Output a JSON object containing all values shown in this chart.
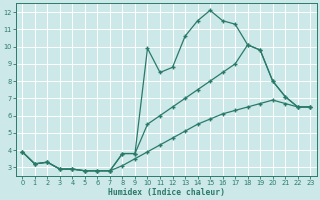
{
  "xlabel": "Humidex (Indice chaleur)",
  "bg_color": "#cce8e8",
  "grid_color": "#ffffff",
  "line_color": "#2a7a6a",
  "ylim": [
    2.5,
    12.5
  ],
  "xlim": [
    -0.5,
    23.5
  ],
  "yticks": [
    3,
    4,
    5,
    6,
    7,
    8,
    9,
    10,
    11,
    12
  ],
  "xticks": [
    0,
    1,
    2,
    3,
    4,
    5,
    6,
    7,
    8,
    9,
    10,
    11,
    12,
    13,
    14,
    15,
    16,
    17,
    18,
    19,
    20,
    21,
    22,
    23
  ],
  "line1_x": [
    0,
    1,
    2,
    3,
    4,
    5,
    6,
    7,
    8,
    9,
    10,
    11,
    12,
    13,
    14,
    15,
    16,
    17,
    18,
    19,
    20,
    21,
    22,
    23
  ],
  "line1_y": [
    3.9,
    3.2,
    3.3,
    2.9,
    2.9,
    2.8,
    2.8,
    2.8,
    3.8,
    3.8,
    9.9,
    8.5,
    8.8,
    10.6,
    11.5,
    12.1,
    11.5,
    11.3,
    10.1,
    9.8,
    8.0,
    7.1,
    6.5,
    6.5
  ],
  "line2_x": [
    0,
    1,
    2,
    3,
    4,
    5,
    6,
    7,
    8,
    9,
    10,
    11,
    12,
    13,
    14,
    15,
    16,
    17,
    18,
    19,
    20,
    21,
    22,
    23
  ],
  "line2_y": [
    3.9,
    3.2,
    3.3,
    2.9,
    2.9,
    2.8,
    2.8,
    2.8,
    3.8,
    3.8,
    5.5,
    6.0,
    6.5,
    7.0,
    7.5,
    8.0,
    8.5,
    9.0,
    10.1,
    9.8,
    8.0,
    7.1,
    6.5,
    6.5
  ],
  "line3_x": [
    0,
    1,
    2,
    3,
    4,
    5,
    6,
    7,
    8,
    9,
    10,
    11,
    12,
    13,
    14,
    15,
    16,
    17,
    18,
    19,
    20,
    21,
    22,
    23
  ],
  "line3_y": [
    3.9,
    3.2,
    3.3,
    2.9,
    2.9,
    2.8,
    2.8,
    2.8,
    3.1,
    3.5,
    3.9,
    4.3,
    4.7,
    5.1,
    5.5,
    5.8,
    6.1,
    6.3,
    6.5,
    6.7,
    6.9,
    6.7,
    6.5,
    6.5
  ]
}
